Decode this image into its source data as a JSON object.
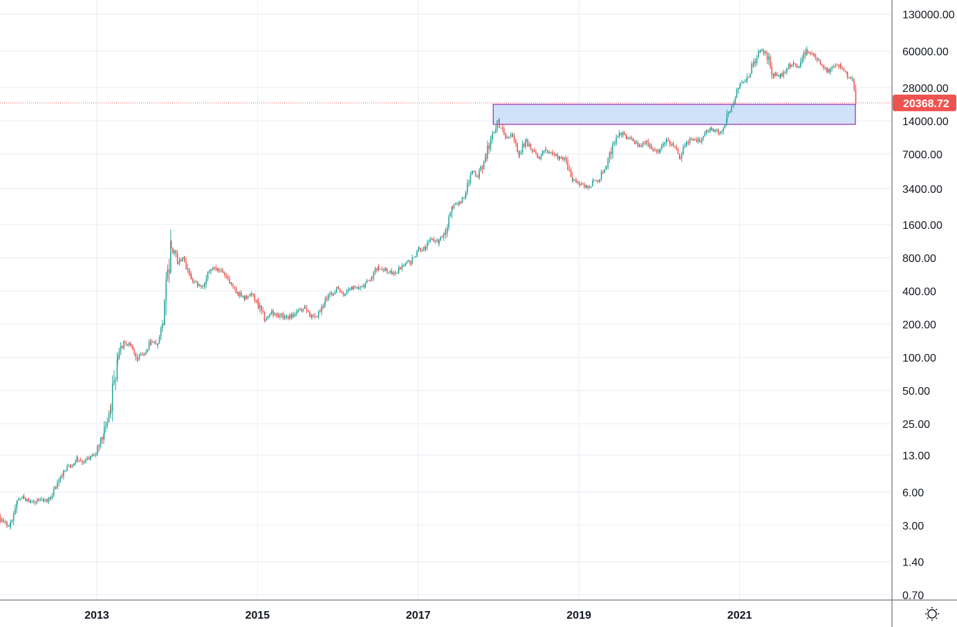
{
  "chart_data": {
    "type": "candlestick",
    "scale": "log",
    "interval": "weekly (approximated from monthly closes)",
    "start_month": "2011-10",
    "first_open": 3.6,
    "monthly_closes": [
      3.2,
      3.0,
      4.7,
      5.5,
      4.9,
      4.9,
      5.0,
      5.2,
      6.7,
      9.3,
      10.2,
      12.4,
      11.2,
      12.6,
      13.5,
      20,
      33,
      93,
      139,
      129,
      97,
      106,
      135,
      133,
      198,
      1130,
      730,
      800,
      550,
      450,
      445,
      630,
      640,
      585,
      480,
      390,
      338,
      378,
      320,
      217,
      254,
      244,
      236,
      230,
      263,
      284,
      230,
      236,
      314,
      377,
      430,
      368,
      437,
      416,
      448,
      531,
      673,
      624,
      575,
      609,
      698,
      742,
      963,
      970,
      1190,
      1080,
      1350,
      2300,
      2480,
      2875,
      4700,
      4340,
      6470,
      10200,
      14150,
      10200,
      10300,
      6920,
      9240,
      7500,
      6400,
      7730,
      7030,
      6630,
      6370,
      4020,
      3740,
      3460,
      3850,
      4100,
      5320,
      8570,
      10800,
      10100,
      9600,
      8300,
      9200,
      7570,
      7200,
      9350,
      8520,
      6410,
      8630,
      9450,
      9140,
      11350,
      11650,
      10780,
      13800,
      19700,
      29000,
      33100,
      45200,
      58800,
      57700,
      37300,
      35000,
      41500,
      47100,
      43800,
      61300,
      57000,
      46300,
      38500,
      43200,
      45500,
      37700,
      31800,
      20368.72
    ],
    "last_month_weeks": 2,
    "current_price": "20368.72",
    "y_ticks": [
      "130000.00",
      "60000.00",
      "28000.00",
      "14000.00",
      "7000.00",
      "3400.00",
      "1600.00",
      "800.00",
      "400.00",
      "200.00",
      "100.00",
      "50.00",
      "25.00",
      "13.00",
      "6.00",
      "3.00",
      "1.40",
      "0.70"
    ],
    "x_ticks": [
      "2013",
      "2015",
      "2017",
      "2019",
      "2021"
    ],
    "zone": {
      "from_date": "2017-12",
      "to_date": "2022-06",
      "low": 13000,
      "high": 19750
    },
    "colors": {
      "up": "#26a69a",
      "down": "#ef5350",
      "zone_fill": "#cfe2f9",
      "zone_border": "#9c27b0",
      "grid": "#e6eef6",
      "price_label": "#ef5350"
    }
  },
  "settings_icon": "sun-gear-icon"
}
